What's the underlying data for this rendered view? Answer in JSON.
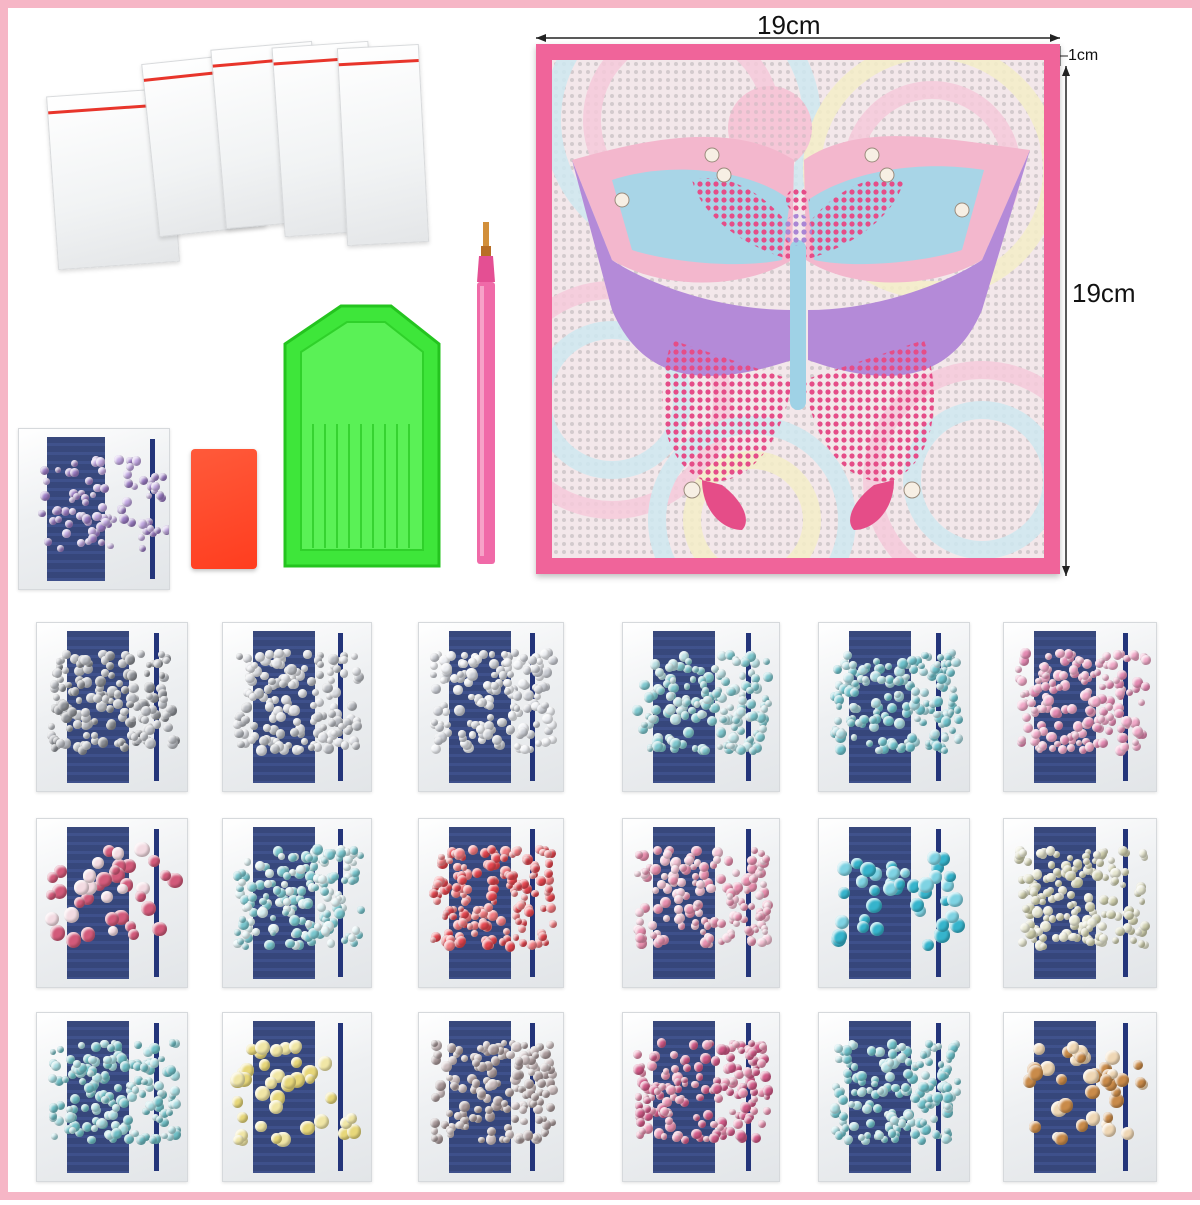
{
  "dimensions": {
    "width_label": "19cm",
    "height_label": "19cm",
    "border_label": "1cm"
  },
  "kit_items": {
    "zip_bags_count": 5,
    "drill_pen": "pen-icon",
    "tray": "tray-icon",
    "wax_clay": "wax-icon"
  },
  "colors": {
    "frame_pink": "#f0649a",
    "canvas_bg": "#f3e7ea",
    "butterfly_pink": "#e0508a",
    "butterfly_purple": "#b48ad8",
    "butterfly_blue": "#9fd2e6",
    "tray_green": "#3ee63a",
    "wax_red": "#ff4a2a",
    "bag_stripe": "#22346e"
  },
  "gem_bags": [
    {
      "color": "#b9bcc2",
      "alt": "#8c8f95"
    },
    {
      "color": "#d9dbe0",
      "alt": "#b5b8be"
    },
    {
      "color": "#c9ccd3",
      "alt": "#eceef2"
    },
    {
      "color": "#7fc8cf",
      "alt": "#b9dfe3"
    },
    {
      "color": "#6fc3cd",
      "alt": "#a7d8df"
    },
    {
      "color": "#f1a9c8",
      "alt": "#e48bb3"
    },
    {
      "color": "#d25a7a",
      "alt": "#f3dbe2"
    },
    {
      "color": "#7ac7cf",
      "alt": "#d8eef0"
    },
    {
      "color": "#e5464f",
      "alt": "#f07a7f"
    },
    {
      "color": "#e88fae",
      "alt": "#f3c2d4"
    },
    {
      "color": "#36b4cc",
      "alt": "#7fd3e3"
    },
    {
      "color": "#cfcfae",
      "alt": "#e6e6d0"
    },
    {
      "color": "#6fbfc6",
      "alt": "#a6dbe0"
    },
    {
      "color": "#e7d77a",
      "alt": "#f0e6a6"
    },
    {
      "color": "#a9999a",
      "alt": "#cbbdbe"
    },
    {
      "color": "#d25a88",
      "alt": "#e88fae"
    },
    {
      "color": "#6fc2cb",
      "alt": "#a9dbe0"
    },
    {
      "color": "#c98b4a",
      "alt": "#efd7b5"
    }
  ],
  "purple_bag": {
    "color": "#9b7cc4",
    "alt": "#c2a8e2"
  }
}
